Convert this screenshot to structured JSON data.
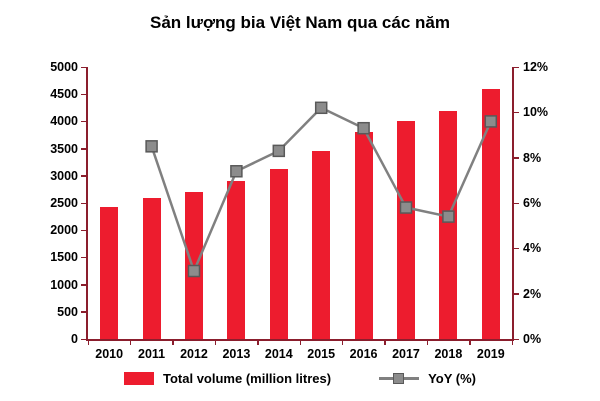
{
  "colors": {
    "bar": "#ed1c2e",
    "line": "#808080",
    "marker_fill": "#8c8c8c",
    "marker_border": "#595959",
    "axis": "#8b1e2d",
    "text": "#000000"
  },
  "chart_data": {
    "type": "bar+line combo",
    "title": "Sản lượng bia Việt Nam qua các năm",
    "categories": [
      "2010",
      "2011",
      "2012",
      "2013",
      "2014",
      "2015",
      "2016",
      "2017",
      "2018",
      "2019"
    ],
    "series": [
      {
        "name": "Total volume (million litres)",
        "type": "bar",
        "axis": "left",
        "values": [
          2420,
          2600,
          2700,
          2900,
          3120,
          3450,
          3800,
          4000,
          4200,
          4600
        ]
      },
      {
        "name": "YoY (%)",
        "type": "line",
        "axis": "right",
        "values": [
          null,
          8.5,
          3.0,
          7.4,
          8.3,
          10.2,
          9.3,
          5.8,
          5.4,
          9.6
        ]
      }
    ],
    "left_axis": {
      "min": 0,
      "max": 5000,
      "step": 500,
      "ticks": [
        "0",
        "500",
        "1000",
        "1500",
        "2000",
        "2500",
        "3000",
        "3500",
        "4000",
        "4500",
        "5000"
      ]
    },
    "right_axis": {
      "min": 0,
      "max": 12,
      "step": 2,
      "ticks": [
        "0%",
        "2%",
        "4%",
        "6%",
        "8%",
        "10%",
        "12%"
      ]
    },
    "grid": false,
    "legend_position": "bottom",
    "legend": [
      {
        "label": "Total volume (million litres)",
        "swatch": "bar"
      },
      {
        "label": "YoY (%)",
        "swatch": "line-marker"
      }
    ]
  }
}
